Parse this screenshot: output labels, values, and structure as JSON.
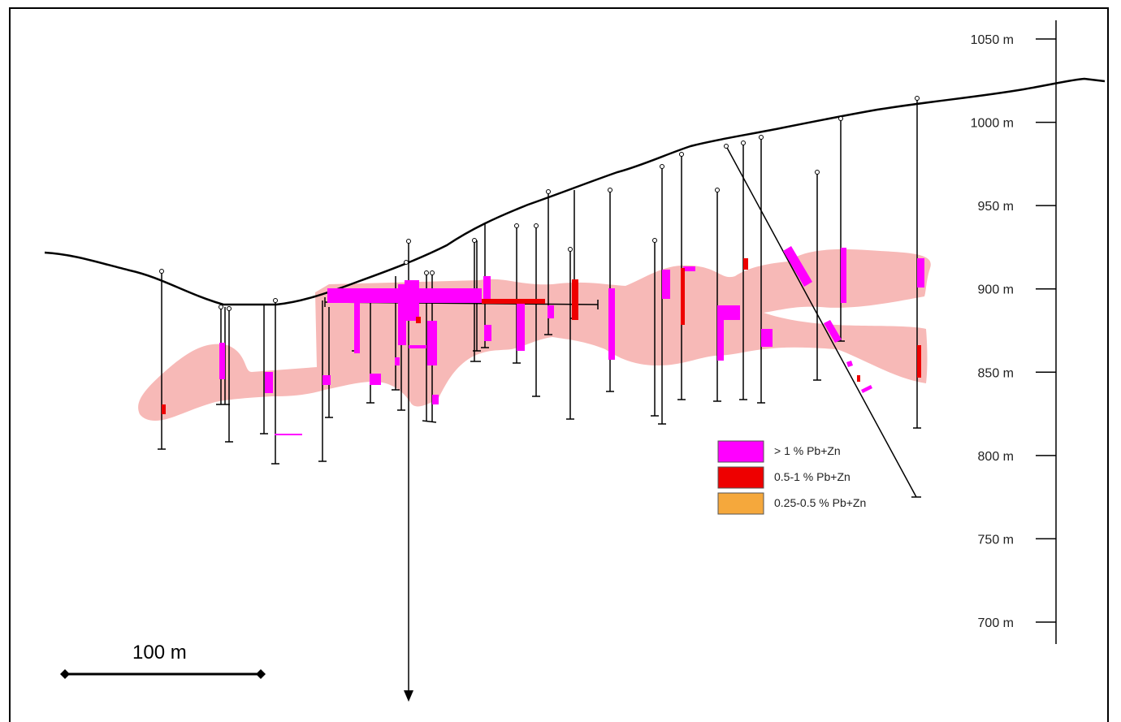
{
  "elevation_axis": {
    "ticks": [
      {
        "label": "1050 m",
        "value": 1050
      },
      {
        "label": "1000 m",
        "value": 1000
      },
      {
        "label": "950 m",
        "value": 950
      },
      {
        "label": "900 m",
        "value": 900
      },
      {
        "label": "850 m",
        "value": 850
      },
      {
        "label": "800 m",
        "value": 800
      },
      {
        "label": "750 m",
        "value": 750
      },
      {
        "label": "700 m",
        "value": 700
      }
    ]
  },
  "legend": {
    "items": [
      {
        "label": "> 1 % Pb+Zn",
        "color": "#ff00ff"
      },
      {
        "label": "0.5-1 % Pb+Zn",
        "color": "#ee0000"
      },
      {
        "label": "0.25-0.5 % Pb+Zn",
        "color": "#f5a83c"
      }
    ]
  },
  "scale_bar": {
    "label": "100 m"
  },
  "colors": {
    "ore_envelope": "#f7b9b7",
    "high_grade": "#ff00ff",
    "medium_grade": "#ee0000",
    "low_grade": "#f5a83c",
    "drillhole": "#000000",
    "topography": "#000000"
  }
}
